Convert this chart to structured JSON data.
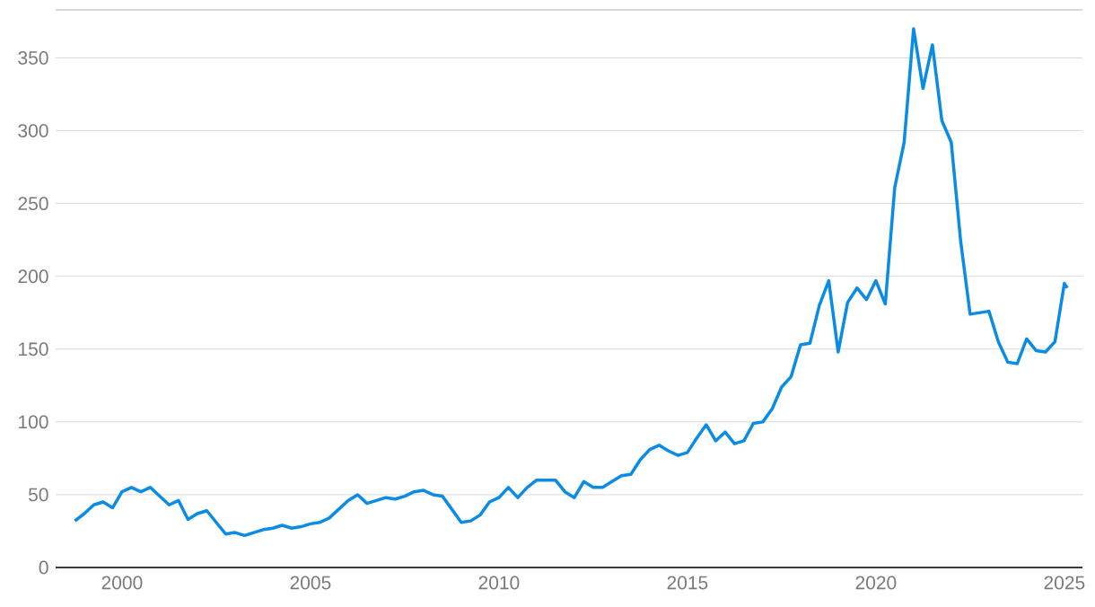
{
  "chart_data": {
    "type": "line",
    "x": [
      1998.75,
      1999,
      1999.25,
      1999.5,
      1999.75,
      2000,
      2000.25,
      2000.5,
      2000.75,
      2001,
      2001.25,
      2001.5,
      2001.75,
      2002,
      2002.25,
      2002.5,
      2002.75,
      2003,
      2003.25,
      2003.5,
      2003.75,
      2004,
      2004.25,
      2004.5,
      2004.75,
      2005,
      2005.25,
      2005.5,
      2005.75,
      2006,
      2006.25,
      2006.5,
      2006.75,
      2007,
      2007.25,
      2007.5,
      2007.75,
      2008,
      2008.25,
      2008.5,
      2008.75,
      2009,
      2009.25,
      2009.5,
      2009.75,
      2010,
      2010.25,
      2010.5,
      2010.75,
      2011,
      2011.25,
      2011.5,
      2011.75,
      2012,
      2012.25,
      2012.5,
      2012.75,
      2013,
      2013.25,
      2013.5,
      2013.75,
      2014,
      2014.25,
      2014.5,
      2014.75,
      2015,
      2015.25,
      2015.5,
      2015.75,
      2016,
      2016.25,
      2016.5,
      2016.75,
      2017,
      2017.25,
      2017.5,
      2017.75,
      2018,
      2018.25,
      2018.5,
      2018.75,
      2019,
      2019.25,
      2019.5,
      2019.75,
      2020,
      2020.25,
      2020.5,
      2020.75,
      2021,
      2021.25,
      2021.5,
      2021.75,
      2022,
      2022.25,
      2022.5,
      2022.75,
      2023,
      2023.25,
      2023.5,
      2023.75,
      2024,
      2024.25,
      2024.5,
      2024.75,
      2025,
      2025.08
    ],
    "values": [
      32,
      37,
      43,
      45,
      41,
      52,
      55,
      52,
      55,
      49,
      43,
      46,
      33,
      37,
      39,
      31,
      23,
      24,
      22,
      24,
      26,
      27,
      29,
      27,
      28,
      30,
      31,
      34,
      40,
      46,
      50,
      44,
      46,
      48,
      47,
      49,
      52,
      53,
      50,
      49,
      40,
      31,
      32,
      36,
      45,
      48,
      55,
      48,
      55,
      60,
      60,
      60,
      52,
      48,
      59,
      55,
      55,
      59,
      63,
      64,
      74,
      81,
      84,
      80,
      77,
      79,
      89,
      98,
      87,
      93,
      85,
      87,
      99,
      100,
      109,
      124,
      131,
      153,
      154,
      180,
      197,
      148,
      182,
      192,
      184,
      197,
      181,
      261,
      292,
      370,
      329,
      359,
      307,
      292,
      224,
      174,
      175,
      176,
      155,
      141,
      140,
      157,
      149,
      148,
      155,
      195,
      192
    ],
    "color": "#0a8ce6",
    "xlim": [
      1998.24,
      2025.48
    ],
    "ylim": [
      0,
      383
    ],
    "xticks": [
      2000,
      2005,
      2010,
      2015,
      2020,
      2025
    ],
    "yticks": [
      0,
      50,
      100,
      150,
      200,
      250,
      300,
      350
    ],
    "grid": "y",
    "marker": "none",
    "line_style": "solid"
  }
}
